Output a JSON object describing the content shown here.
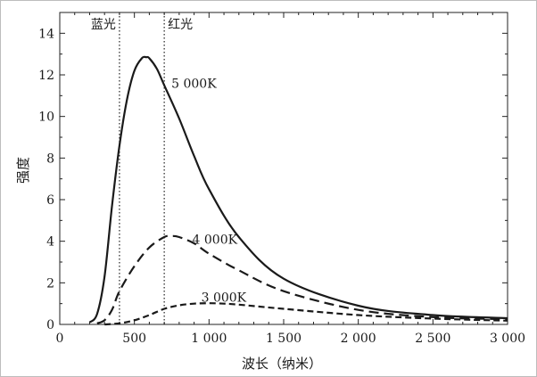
{
  "chart_data": {
    "type": "line",
    "xlabel": "波长（纳米）",
    "ylabel": "强度",
    "xlim": [
      0,
      3000
    ],
    "ylim": [
      0,
      15
    ],
    "x_ticks": [
      0,
      500,
      1000,
      1500,
      2000,
      2500,
      3000
    ],
    "x_tick_labels": [
      "0",
      "500",
      "1 000",
      "1 500",
      "2 000",
      "2 500",
      "3 000"
    ],
    "y_ticks": [
      0,
      2,
      4,
      6,
      8,
      10,
      12,
      14
    ],
    "y_tick_labels": [
      "0",
      "2",
      "4",
      "6",
      "8",
      "10",
      "12",
      "14"
    ],
    "grid": false,
    "legend": "none",
    "markers": [
      {
        "label": "蓝光",
        "x": 400
      },
      {
        "label": "红光",
        "x": 700
      }
    ],
    "series": [
      {
        "name": "5 000K",
        "style": "solid",
        "x": [
          200,
          250,
          300,
          350,
          400,
          450,
          500,
          550,
          580,
          600,
          650,
          700,
          800,
          900,
          1000,
          1200,
          1500,
          2000,
          2500,
          3000
        ],
        "values": [
          0.1,
          0.5,
          2.3,
          5.7,
          8.6,
          10.8,
          12.2,
          12.8,
          12.85,
          12.8,
          12.3,
          11.5,
          9.9,
          8.1,
          6.5,
          4.2,
          2.2,
          0.9,
          0.45,
          0.3
        ]
      },
      {
        "name": "4 000K",
        "style": "dashed",
        "x": [
          250,
          300,
          350,
          400,
          500,
          600,
          700,
          750,
          800,
          900,
          1000,
          1200,
          1500,
          2000,
          2500,
          3000
        ],
        "values": [
          0.05,
          0.2,
          0.7,
          1.6,
          2.8,
          3.7,
          4.2,
          4.25,
          4.2,
          3.9,
          3.4,
          2.6,
          1.6,
          0.7,
          0.35,
          0.25
        ]
      },
      {
        "name": "3 000K",
        "style": "dashed",
        "x": [
          300,
          400,
          500,
          600,
          700,
          800,
          900,
          1000,
          1100,
          1200,
          1500,
          2000,
          2500,
          3000
        ],
        "values": [
          0.0,
          0.05,
          0.2,
          0.45,
          0.75,
          0.92,
          1.0,
          1.02,
          1.0,
          0.95,
          0.75,
          0.45,
          0.28,
          0.18
        ]
      }
    ]
  }
}
